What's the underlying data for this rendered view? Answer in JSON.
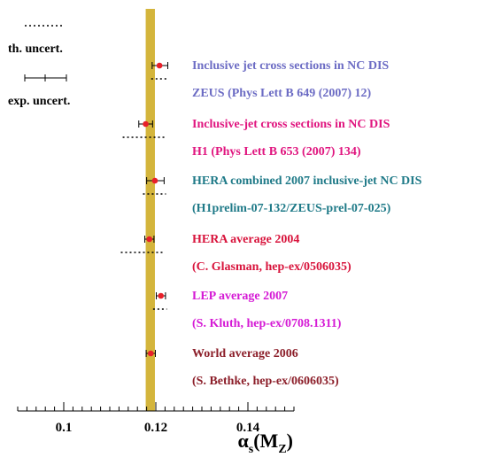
{
  "chart_data": {
    "type": "scatter",
    "xlabel": "αs(MZ)",
    "xlim": [
      0.09,
      0.15
    ],
    "ticks": [
      {
        "value": 0.1,
        "label": "0.1"
      },
      {
        "value": 0.12,
        "label": "0.12"
      },
      {
        "value": 0.14,
        "label": "0.14"
      }
    ],
    "band": {
      "low": 0.1178,
      "high": 0.1198,
      "color": "#d4b53c"
    },
    "legend": {
      "th_label": "th. uncert.",
      "exp_label": "exp. uncert."
    },
    "point_color": "#e8202a",
    "measurements": [
      {
        "title": "Inclusive jet cross sections in NC DIS",
        "ref": "ZEUS (Phys Lett B 649 (2007) 12)",
        "color": "#6c6cc4",
        "value": 0.1208,
        "exp_low": 0.1192,
        "exp_high": 0.1226,
        "th_low": 0.119,
        "th_high": 0.1224
      },
      {
        "title": "Inclusive-jet cross sections in NC DIS",
        "ref": "H1 (Phys Lett B 653 (2007) 134)",
        "color": "#e0157f",
        "value": 0.1178,
        "exp_low": 0.1163,
        "exp_high": 0.1193,
        "th_low": 0.1128,
        "th_high": 0.1222
      },
      {
        "title": "HERA combined 2007 inclusive-jet NC DIS",
        "ref": "(H1prelim-07-132/ZEUS-prel-07-025)",
        "color": "#1f7a88",
        "value": 0.1198,
        "exp_low": 0.118,
        "exp_high": 0.1218,
        "th_low": 0.1172,
        "th_high": 0.1222
      },
      {
        "title": "HERA average 2004",
        "ref": "(C. Glasman, hep-ex/0506035)",
        "color": "#d8143c",
        "value": 0.1186,
        "exp_low": 0.1176,
        "exp_high": 0.1196,
        "th_low": 0.1124,
        "th_high": 0.1216
      },
      {
        "title": "LEP average 2007",
        "ref": "(S. Kluth, hep-ex/0708.1311)",
        "color": "#d51ad5",
        "value": 0.1211,
        "exp_low": 0.1201,
        "exp_high": 0.1221,
        "th_low": 0.1194,
        "th_high": 0.1224
      },
      {
        "title": "World average 2006",
        "ref": "(S. Bethke, hep-ex/0606035)",
        "color": "#8c1f2a",
        "value": 0.1189,
        "exp_low": 0.1179,
        "exp_high": 0.1199,
        "th_low": null,
        "th_high": null
      }
    ]
  }
}
